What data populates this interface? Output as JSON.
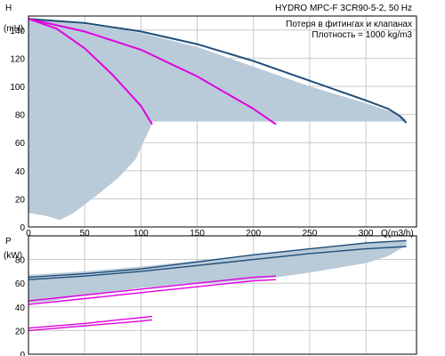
{
  "header": {
    "title": "HYDRO MPC-F 3CR90-5-2, 50 Hz",
    "note_line1": "Потеря в фитингах и клапанах",
    "note_line2": "Плотность = 1000 kg/m3"
  },
  "colors": {
    "fill": "#b9cad9",
    "duty": "#1f4e79",
    "partial": "#e000e0",
    "grid": "#c8c8c8"
  },
  "chart_data": [
    {
      "type": "line",
      "id": "head",
      "ylabel_line1": "H",
      "ylabel_line2": "(mH)",
      "xlabel": "Q(m3/h)",
      "xlim": [
        0,
        345
      ],
      "ylim": [
        0,
        150
      ],
      "xticks": [
        0,
        50,
        100,
        150,
        200,
        250,
        300
      ],
      "yticks": [
        0,
        20,
        40,
        60,
        80,
        100,
        120,
        140
      ],
      "grid": true,
      "duty_band": {
        "upper": [
          [
            0,
            148
          ],
          [
            50,
            144
          ],
          [
            100,
            138
          ],
          [
            150,
            128
          ],
          [
            200,
            114
          ],
          [
            250,
            100
          ],
          [
            300,
            88
          ],
          [
            330,
            80
          ],
          [
            335,
            77
          ],
          [
            336,
            75
          ]
        ],
        "lower_y": 75,
        "lower_x_end": 336
      },
      "low_region": {
        "upper": [
          [
            0,
            148
          ],
          [
            25,
            146
          ],
          [
            50,
            138
          ],
          [
            75,
            125
          ],
          [
            100,
            100
          ],
          [
            110,
            75
          ]
        ],
        "lower": [
          [
            0,
            10
          ],
          [
            15,
            8
          ],
          [
            28,
            5
          ],
          [
            40,
            10
          ],
          [
            60,
            22
          ],
          [
            80,
            35
          ],
          [
            95,
            48
          ],
          [
            102,
            60
          ],
          [
            108,
            70
          ],
          [
            110,
            75
          ]
        ]
      },
      "series": [
        {
          "role": "all-pumps",
          "color": "duty",
          "x": [
            0,
            50,
            100,
            150,
            200,
            250,
            300,
            320,
            330,
            336
          ],
          "y": [
            148,
            145,
            139,
            130,
            118,
            104,
            90,
            84,
            79,
            74
          ]
        },
        {
          "role": "two-pumps",
          "color": "partial",
          "x": [
            0,
            50,
            100,
            150,
            200,
            220
          ],
          "y": [
            148,
            139,
            126,
            107,
            84,
            73
          ]
        },
        {
          "role": "one-pump",
          "color": "partial",
          "x": [
            0,
            25,
            50,
            75,
            100,
            110
          ],
          "y": [
            148,
            141,
            127,
            108,
            86,
            73
          ]
        }
      ]
    },
    {
      "type": "line",
      "id": "power",
      "ylabel_line1": "P",
      "ylabel_line2": "(kW)",
      "xlim": [
        0,
        345
      ],
      "ylim": [
        0,
        100
      ],
      "yticks": [
        0,
        20,
        40,
        60,
        80
      ],
      "grid": true,
      "band": {
        "upper": [
          [
            0,
            67
          ],
          [
            50,
            70
          ],
          [
            100,
            74
          ],
          [
            150,
            79
          ],
          [
            200,
            84
          ],
          [
            250,
            89
          ],
          [
            300,
            94
          ],
          [
            336,
            96
          ]
        ],
        "lower": [
          [
            336,
            92
          ],
          [
            320,
            83
          ],
          [
            300,
            77
          ],
          [
            250,
            69
          ],
          [
            220,
            65
          ],
          [
            175,
            61
          ],
          [
            100,
            56
          ],
          [
            50,
            50
          ],
          [
            20,
            45
          ],
          [
            0,
            43
          ]
        ]
      },
      "series": [
        {
          "role": "all-pumps-upper",
          "color": "duty",
          "x": [
            0,
            50,
            100,
            150,
            200,
            250,
            300,
            336
          ],
          "y": [
            65,
            68,
            72,
            78,
            84,
            89,
            94,
            96
          ]
        },
        {
          "role": "all-pumps-lower",
          "color": "duty",
          "x": [
            0,
            50,
            100,
            150,
            200,
            250,
            300,
            336
          ],
          "y": [
            63,
            66,
            70,
            75,
            80,
            85,
            89,
            91
          ]
        },
        {
          "role": "two-pumps-upper",
          "color": "partial",
          "x": [
            0,
            50,
            100,
            150,
            200,
            220
          ],
          "y": [
            45,
            50,
            55,
            60,
            65,
            66
          ]
        },
        {
          "role": "two-pumps-lower",
          "color": "partial",
          "x": [
            0,
            50,
            100,
            150,
            200,
            220
          ],
          "y": [
            42,
            47,
            52,
            57,
            62,
            63
          ]
        },
        {
          "role": "one-pump-upper",
          "color": "partial",
          "x": [
            0,
            50,
            100,
            110
          ],
          "y": [
            22,
            26,
            31,
            32
          ]
        },
        {
          "role": "one-pump-lower",
          "color": "partial",
          "x": [
            0,
            50,
            100,
            110
          ],
          "y": [
            20,
            24,
            28,
            29
          ]
        }
      ]
    }
  ]
}
